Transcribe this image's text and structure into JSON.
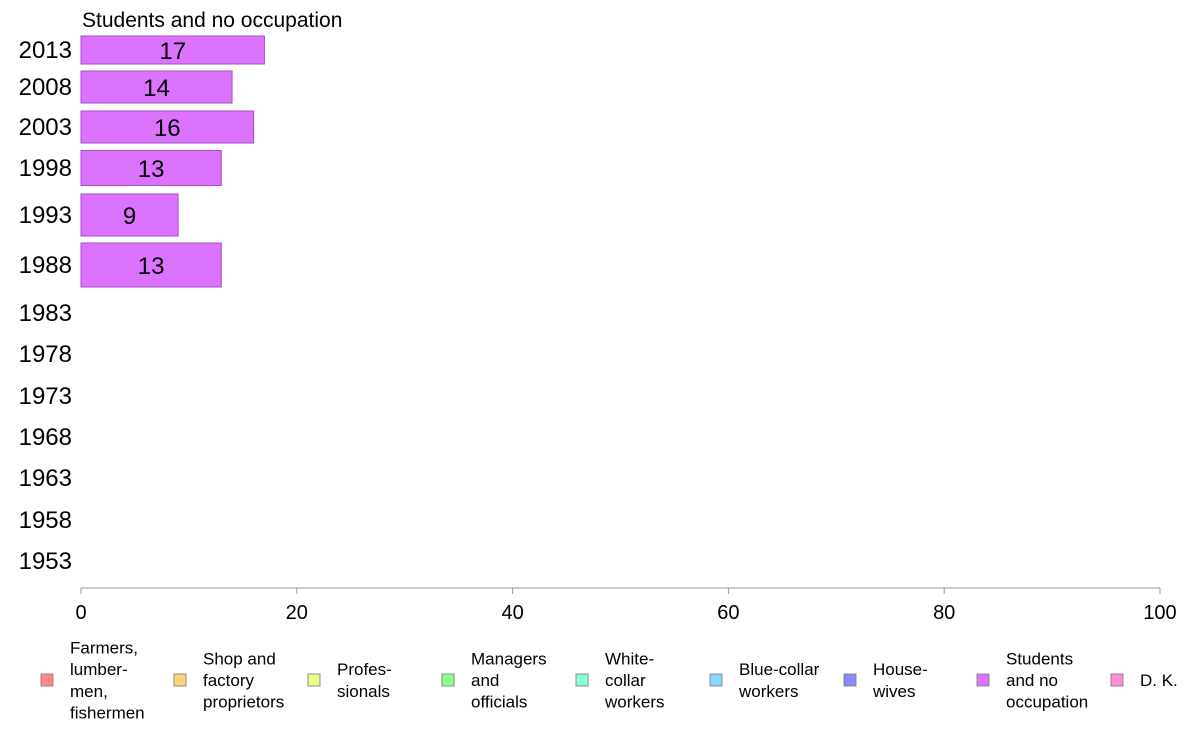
{
  "chart_data": {
    "type": "bar",
    "orientation": "horizontal",
    "title": "Students and no occupation",
    "categories": [
      "2013",
      "2008",
      "2003",
      "1998",
      "1993",
      "1988",
      "1983",
      "1978",
      "1973",
      "1968",
      "1963",
      "1958",
      "1953"
    ],
    "series": [
      {
        "name": "Students and no occupation",
        "values": [
          17,
          14,
          16,
          13,
          9,
          13,
          null,
          null,
          null,
          null,
          null,
          null,
          null
        ],
        "color": "#dc73ff"
      }
    ],
    "data_labels": [
      "17",
      "14",
      "16",
      "13",
      "9",
      "13",
      "",
      "",
      "",
      "",
      "",
      "",
      ""
    ],
    "xlim": [
      0,
      100
    ],
    "xticks": [
      "0",
      "20",
      "40",
      "60",
      "80",
      "100"
    ],
    "grid": false,
    "legend_position": "bottom",
    "legend": [
      {
        "lines": [
          "Farmers,",
          "lumber-",
          "men,",
          "fishermen"
        ],
        "color": "#ff8a8a"
      },
      {
        "lines": [
          "Shop and",
          "factory",
          "proprietors"
        ],
        "color": "#ffd27a"
      },
      {
        "lines": [
          "Profes-",
          "sionals"
        ],
        "color": "#e9ff8a"
      },
      {
        "lines": [
          "Managers",
          "and",
          "officials"
        ],
        "color": "#8aff8a"
      },
      {
        "lines": [
          "White-",
          "collar",
          "workers"
        ],
        "color": "#8affd8"
      },
      {
        "lines": [
          "Blue-collar",
          "workers"
        ],
        "color": "#8ad8ff"
      },
      {
        "lines": [
          "House-",
          "wives"
        ],
        "color": "#8a8aff"
      },
      {
        "lines": [
          "Students",
          "and no",
          "occupation"
        ],
        "color": "#dc73ff"
      },
      {
        "lines": [
          "D. K."
        ],
        "color": "#ff8ad8"
      }
    ]
  }
}
